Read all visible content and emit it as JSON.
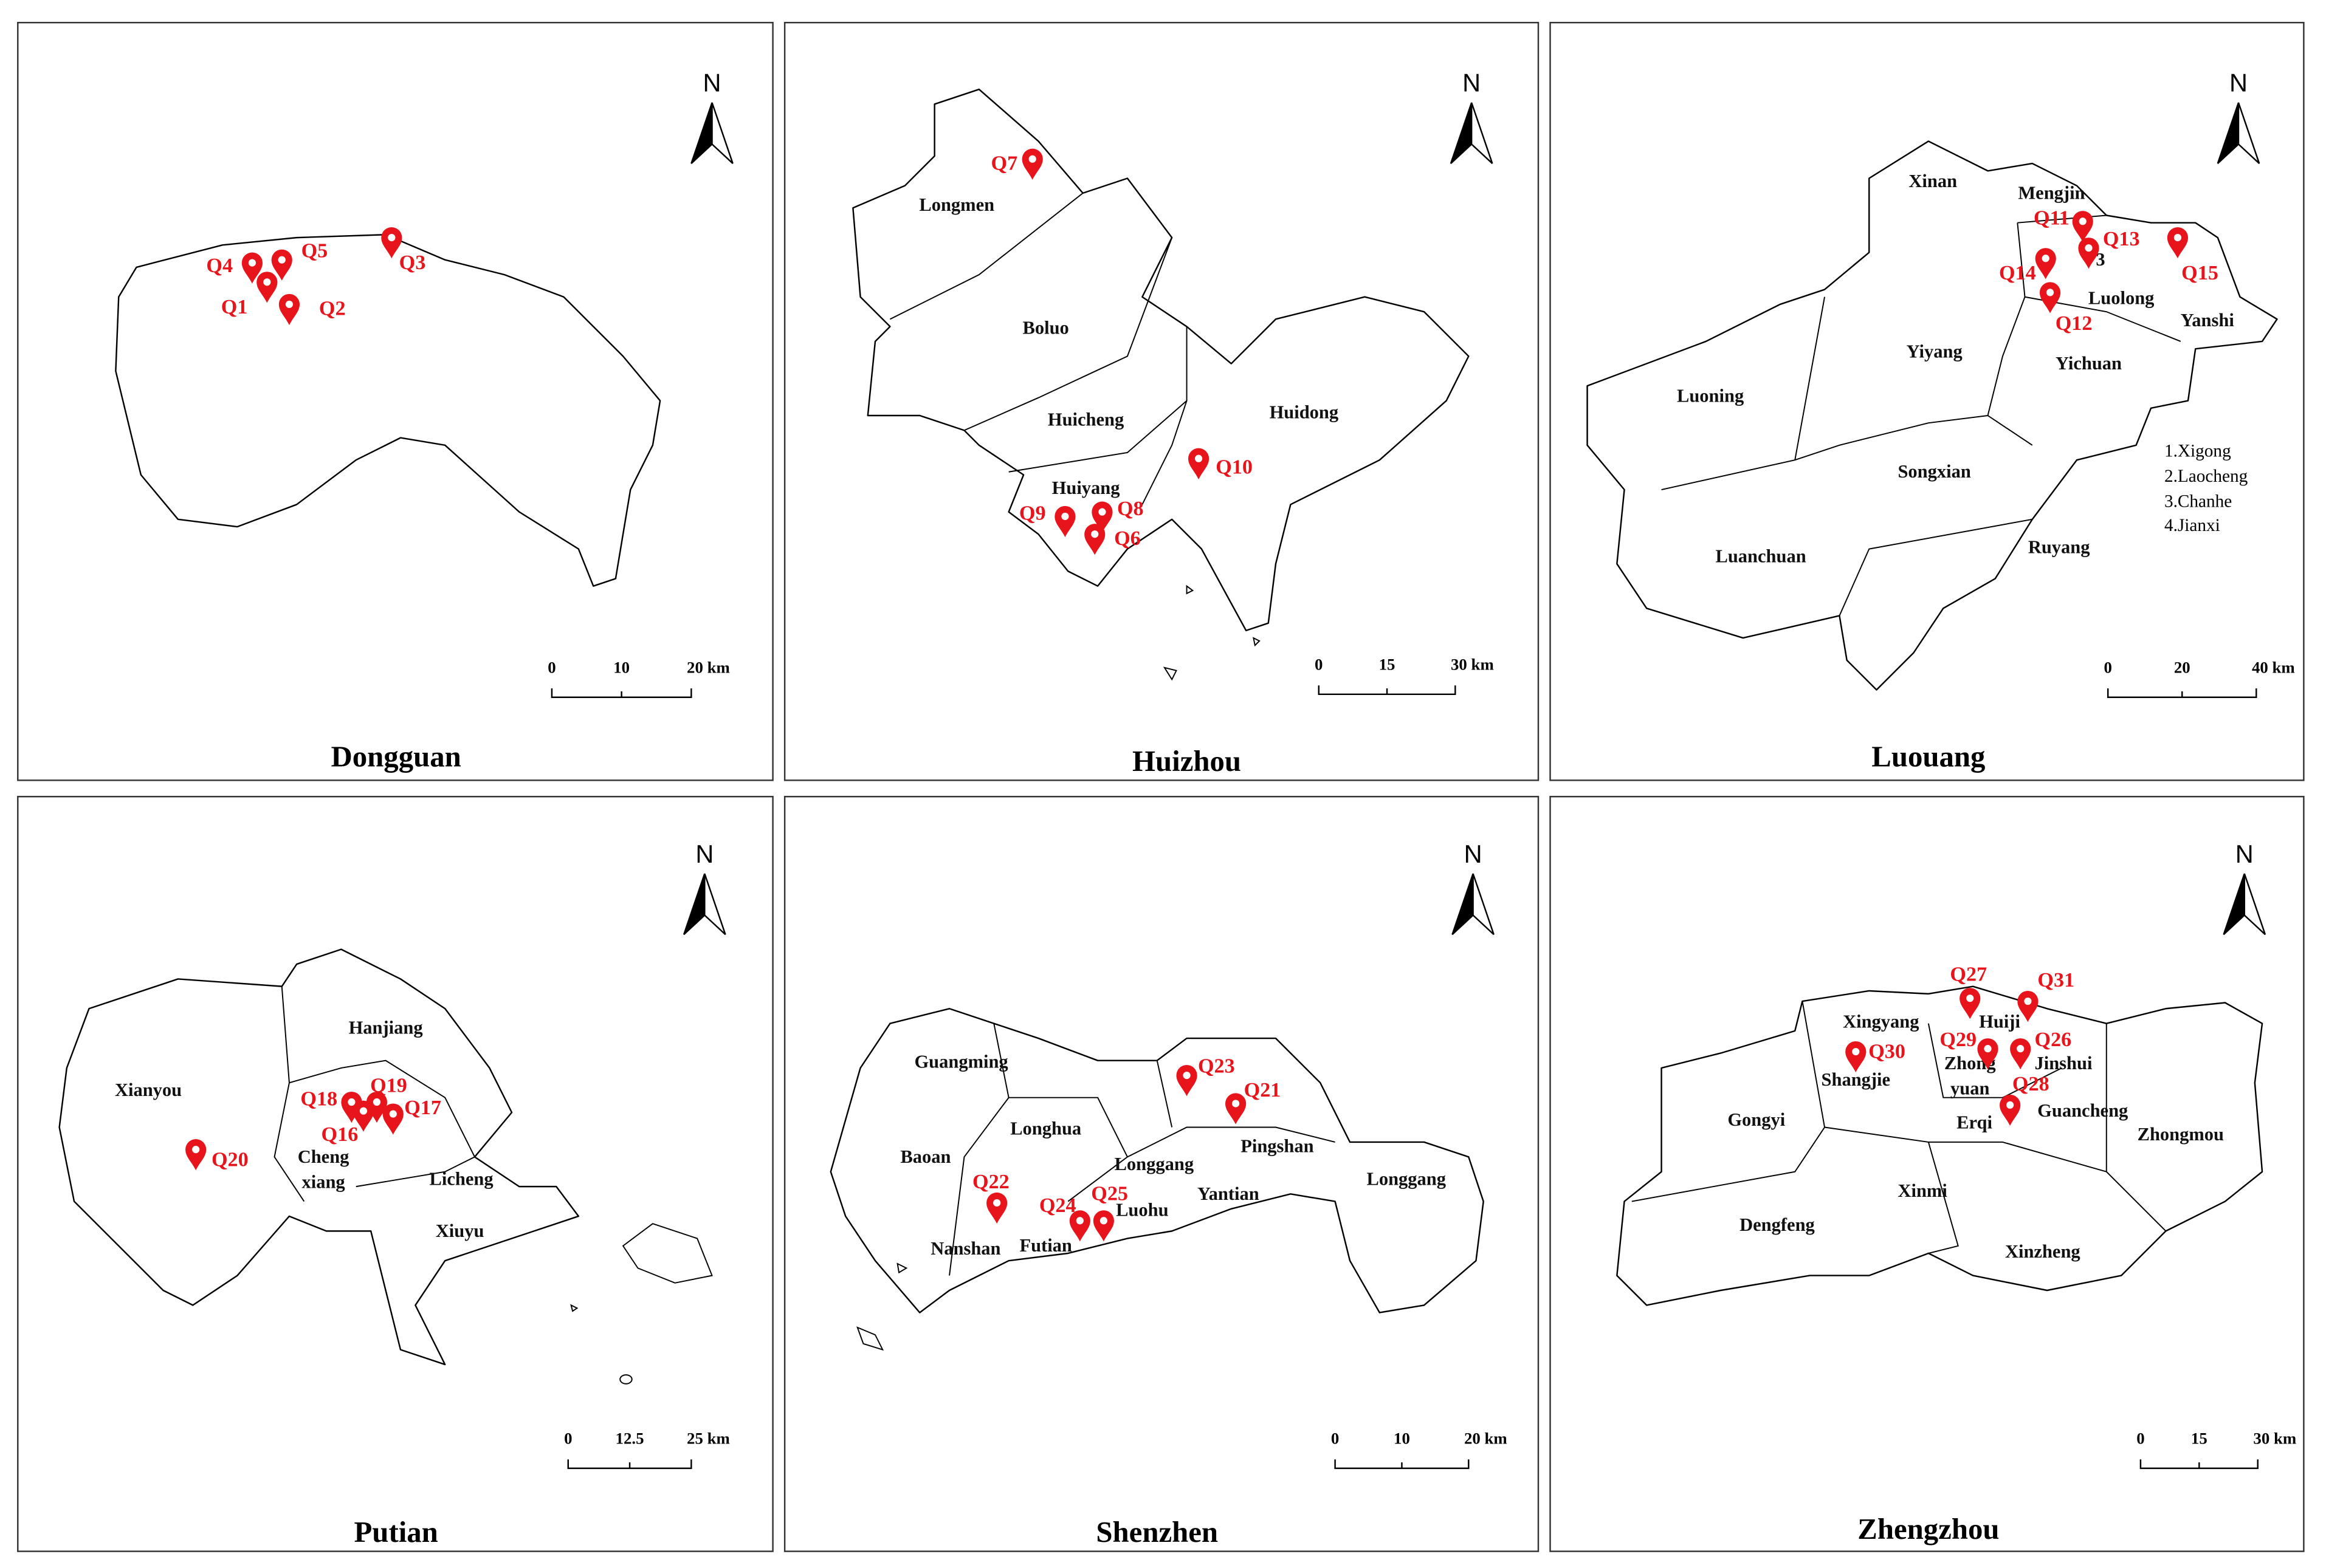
{
  "panels": [
    {
      "title": "Dongguan",
      "north": "N",
      "scale": [
        "0",
        "10",
        "20 km"
      ],
      "districts": [],
      "notes": [],
      "points": [
        "Q4",
        "Q5",
        "Q3",
        "Q1",
        "Q2"
      ]
    },
    {
      "title": "Huizhou",
      "north": "N",
      "scale": [
        "0",
        "15",
        "30 km"
      ],
      "districts": [
        "Longmen",
        "Boluo",
        "Huicheng",
        "Huidong",
        "Huiyang"
      ],
      "notes": [],
      "points": [
        "Q7",
        "Q10",
        "Q9",
        "Q8",
        "Q6"
      ]
    },
    {
      "title": "Luouang",
      "north": "N",
      "scale": [
        "0",
        "20",
        "40 km"
      ],
      "districts": [
        "Xinan",
        "Mengjin",
        "Luolong",
        "Yanshi",
        "Yiyang",
        "Yichuan",
        "Luoning",
        "Songxian",
        "Luanchuan",
        "Ruyang",
        "3"
      ],
      "notes": [
        "1.Xigong",
        "2.Laocheng",
        "3.Chanhe",
        "4.Jianxi"
      ],
      "points": [
        "Q11",
        "Q13",
        "Q15",
        "Q14",
        "Q12"
      ]
    },
    {
      "title": "Putian",
      "north": "N",
      "scale": [
        "0",
        "12.5",
        "25 km"
      ],
      "districts": [
        "Hanjiang",
        "Xianyou",
        "Cheng",
        "xiang",
        "Licheng",
        "Xiuyu"
      ],
      "notes": [],
      "points": [
        "Q18",
        "Q19",
        "Q17",
        "Q16",
        "Q20"
      ]
    },
    {
      "title": "Shenzhen",
      "north": "N",
      "scale": [
        "0",
        "10",
        "20 km"
      ],
      "districts": [
        "Guangming",
        "Baoan",
        "Longhua",
        "Longgang",
        "Pingshan",
        "Yantian",
        "Longgang",
        "Luohu",
        "Nanshan",
        "Futian"
      ],
      "notes": [],
      "points": [
        "Q23",
        "Q21",
        "Q22",
        "Q24",
        "Q25"
      ]
    },
    {
      "title": "Zhengzhou",
      "north": "N",
      "scale": [
        "0",
        "15",
        "30 km"
      ],
      "districts": [
        "Xingyang",
        "Huiji",
        "Zhong",
        "yuan",
        "Jinshui",
        "Shangjie",
        "Gongyi",
        "Erqi",
        "Guancheng",
        "Zhongmou",
        "Xinmi",
        "Dengfeng",
        "Xinzheng"
      ],
      "notes": [],
      "points": [
        "Q27",
        "Q31",
        "Q29",
        "Q26",
        "Q30",
        "Q28"
      ]
    }
  ]
}
